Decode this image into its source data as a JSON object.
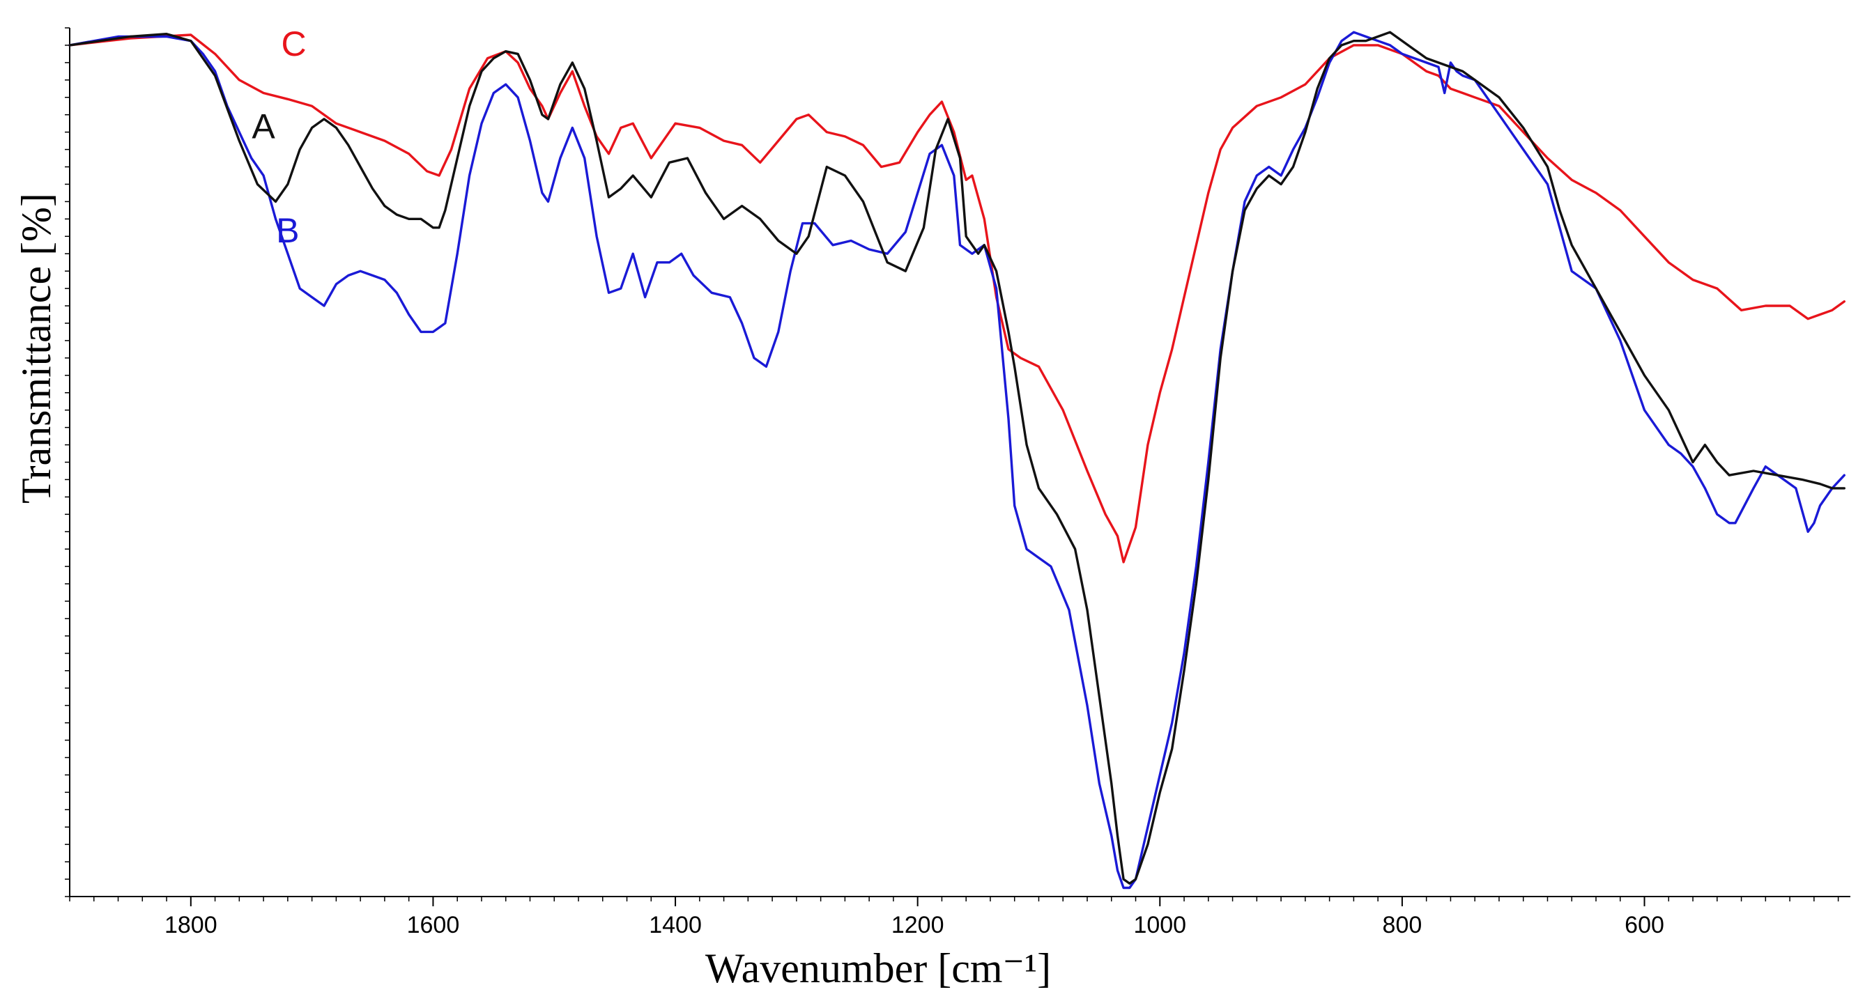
{
  "chart_data": {
    "type": "line",
    "title": "",
    "xlabel": "Wavenumber [cm⁻¹]",
    "ylabel": "Transmittance [%]",
    "x_reversed": true,
    "xlim": [
      1900,
      430
    ],
    "ylim": [
      0,
      100
    ],
    "x_ticks": [
      1800,
      1600,
      1400,
      1200,
      1000,
      800,
      600
    ],
    "x_tick_labels": [
      "1800",
      "1600",
      "1400",
      "1200",
      "1000",
      "800",
      "600"
    ],
    "y_tick_labels_shown": false,
    "grid": false,
    "legend": "inline labels near curves",
    "series": [
      {
        "name": "C",
        "color": "#e8141b",
        "x": [
          1900,
          1850,
          1800,
          1780,
          1760,
          1740,
          1720,
          1700,
          1680,
          1660,
          1640,
          1620,
          1605,
          1595,
          1585,
          1570,
          1555,
          1540,
          1530,
          1520,
          1510,
          1505,
          1495,
          1485,
          1475,
          1465,
          1455,
          1445,
          1435,
          1420,
          1400,
          1380,
          1360,
          1345,
          1330,
          1315,
          1300,
          1290,
          1275,
          1260,
          1245,
          1230,
          1215,
          1200,
          1190,
          1180,
          1170,
          1160,
          1155,
          1145,
          1135,
          1125,
          1115,
          1100,
          1080,
          1060,
          1045,
          1035,
          1030,
          1020,
          1010,
          1000,
          990,
          980,
          970,
          960,
          950,
          940,
          920,
          900,
          880,
          860,
          840,
          820,
          810,
          800,
          790,
          780,
          770,
          760,
          750,
          740,
          720,
          700,
          680,
          660,
          640,
          620,
          600,
          580,
          560,
          540,
          520,
          500,
          480,
          465,
          455,
          445,
          435
        ],
        "y": [
          98.0,
          98.8,
          99.2,
          97.0,
          94.0,
          92.5,
          91.8,
          91.0,
          89.0,
          88.0,
          87.0,
          85.5,
          83.5,
          83.0,
          86.0,
          93.0,
          96.5,
          97.3,
          96.0,
          93.0,
          91.0,
          89.5,
          92.5,
          95.0,
          91.0,
          87.5,
          85.5,
          88.5,
          89.0,
          85.0,
          89.0,
          88.5,
          87.0,
          86.5,
          84.5,
          87.0,
          89.5,
          90.0,
          88.0,
          87.5,
          86.5,
          84.0,
          84.5,
          88.0,
          90.0,
          91.5,
          88.0,
          82.5,
          83.0,
          78.0,
          69.0,
          63.0,
          62.0,
          61.0,
          56.0,
          49.0,
          44.0,
          41.5,
          38.5,
          42.5,
          52.0,
          58.0,
          63.0,
          69.0,
          75.0,
          81.0,
          86.0,
          88.5,
          91.0,
          92.0,
          93.5,
          96.5,
          98.0,
          98.0,
          97.5,
          97.0,
          96.0,
          95.0,
          94.5,
          93.0,
          92.5,
          92.0,
          91.0,
          88.0,
          85.0,
          82.5,
          81.0,
          79.0,
          76.0,
          73.0,
          71.0,
          70.0,
          67.5,
          68.0,
          68.0,
          66.5,
          67.0,
          67.5,
          68.5
        ]
      },
      {
        "name": "A",
        "color": "#111111",
        "x": [
          1900,
          1850,
          1820,
          1800,
          1780,
          1760,
          1745,
          1730,
          1720,
          1710,
          1700,
          1690,
          1680,
          1670,
          1660,
          1650,
          1640,
          1630,
          1620,
          1610,
          1600,
          1595,
          1590,
          1580,
          1570,
          1560,
          1550,
          1540,
          1530,
          1520,
          1510,
          1505,
          1495,
          1485,
          1475,
          1465,
          1455,
          1445,
          1435,
          1420,
          1405,
          1390,
          1375,
          1360,
          1345,
          1330,
          1315,
          1300,
          1290,
          1275,
          1260,
          1245,
          1235,
          1225,
          1210,
          1195,
          1185,
          1175,
          1165,
          1160,
          1150,
          1145,
          1135,
          1125,
          1120,
          1110,
          1100,
          1085,
          1070,
          1060,
          1050,
          1040,
          1035,
          1030,
          1025,
          1020,
          1010,
          1000,
          990,
          980,
          970,
          960,
          950,
          940,
          930,
          920,
          910,
          900,
          890,
          880,
          870,
          860,
          850,
          840,
          830,
          820,
          810,
          800,
          790,
          780,
          770,
          760,
          750,
          740,
          720,
          700,
          680,
          670,
          660,
          640,
          620,
          600,
          580,
          570,
          560,
          550,
          540,
          530,
          510,
          490,
          470,
          455,
          445,
          435
        ],
        "y": [
          98.0,
          99.0,
          99.3,
          98.5,
          94.5,
          87.0,
          82.0,
          80.0,
          82.0,
          86.0,
          88.5,
          89.5,
          88.5,
          86.5,
          84.0,
          81.5,
          79.5,
          78.5,
          78.0,
          78.0,
          77.0,
          77.0,
          79.0,
          85.0,
          91.0,
          95.0,
          96.5,
          97.3,
          97.0,
          94.0,
          90.0,
          89.5,
          93.5,
          96.0,
          93.0,
          87.0,
          80.5,
          81.5,
          83.0,
          80.5,
          84.5,
          85.0,
          81.0,
          78.0,
          79.5,
          78.0,
          75.5,
          74.0,
          76.0,
          84.0,
          83.0,
          80.0,
          76.5,
          73.0,
          72.0,
          77.0,
          86.0,
          89.5,
          85.0,
          76.0,
          74.0,
          75.0,
          72.0,
          65.0,
          61.0,
          52.0,
          47.0,
          44.0,
          40.0,
          33.0,
          23.0,
          13.0,
          7.0,
          2.0,
          1.5,
          2.0,
          6.0,
          12.0,
          17.0,
          26.0,
          36.0,
          48.0,
          62.0,
          72.0,
          79.0,
          81.5,
          83.0,
          82.0,
          84.0,
          88.0,
          93.0,
          96.5,
          98.0,
          98.5,
          98.5,
          99.0,
          99.5,
          98.5,
          97.5,
          96.5,
          96.0,
          95.5,
          95.0,
          94.0,
          92.0,
          88.5,
          84.0,
          79.0,
          75.0,
          70.0,
          65.0,
          60.0,
          56.0,
          53.0,
          50.0,
          52.0,
          50.0,
          48.5,
          49.0,
          48.5,
          48.0,
          47.5,
          47.0,
          47.0
        ]
      },
      {
        "name": "B",
        "color": "#1a1ad6",
        "x": [
          1900,
          1860,
          1820,
          1800,
          1790,
          1780,
          1770,
          1760,
          1750,
          1740,
          1730,
          1720,
          1710,
          1700,
          1690,
          1680,
          1670,
          1660,
          1650,
          1640,
          1630,
          1620,
          1610,
          1600,
          1595,
          1590,
          1580,
          1570,
          1560,
          1550,
          1540,
          1530,
          1520,
          1510,
          1505,
          1495,
          1485,
          1475,
          1465,
          1455,
          1445,
          1435,
          1425,
          1415,
          1405,
          1395,
          1385,
          1370,
          1355,
          1345,
          1335,
          1325,
          1315,
          1305,
          1295,
          1285,
          1270,
          1255,
          1240,
          1225,
          1210,
          1200,
          1190,
          1180,
          1170,
          1165,
          1155,
          1145,
          1135,
          1125,
          1120,
          1110,
          1100,
          1090,
          1075,
          1060,
          1050,
          1040,
          1035,
          1030,
          1025,
          1020,
          1010,
          1000,
          990,
          980,
          970,
          960,
          950,
          940,
          930,
          920,
          910,
          900,
          890,
          880,
          870,
          860,
          850,
          840,
          830,
          820,
          810,
          800,
          790,
          780,
          770,
          765,
          760,
          755,
          750,
          740,
          720,
          700,
          680,
          670,
          660,
          640,
          620,
          600,
          580,
          570,
          560,
          550,
          540,
          530,
          525,
          510,
          500,
          485,
          475,
          465,
          460,
          455,
          445,
          435
        ],
        "y": [
          98.0,
          99.0,
          99.0,
          98.5,
          97.0,
          95.0,
          91.0,
          88.0,
          85.0,
          83.0,
          78.0,
          74.0,
          70.0,
          69.0,
          68.0,
          70.5,
          71.5,
          72.0,
          71.5,
          71.0,
          69.5,
          67.0,
          65.0,
          65.0,
          65.5,
          66.0,
          74.0,
          83.0,
          89.0,
          92.5,
          93.5,
          92.0,
          87.0,
          81.0,
          80.0,
          85.0,
          88.5,
          85.0,
          76.0,
          69.5,
          70.0,
          74.0,
          69.0,
          73.0,
          73.0,
          74.0,
          71.5,
          69.5,
          69.0,
          66.0,
          62.0,
          61.0,
          65.0,
          72.0,
          77.5,
          77.5,
          75.0,
          75.5,
          74.5,
          74.0,
          76.5,
          81.0,
          85.5,
          86.5,
          83.0,
          75.0,
          74.0,
          75.0,
          70.0,
          55.0,
          45.0,
          40.0,
          39.0,
          38.0,
          33.0,
          22.0,
          13.0,
          7.0,
          3.0,
          1.0,
          1.0,
          2.0,
          8.0,
          14.0,
          20.0,
          28.0,
          38.0,
          50.0,
          63.0,
          72.0,
          80.0,
          83.0,
          84.0,
          83.0,
          86.0,
          88.5,
          92.0,
          96.0,
          98.5,
          99.5,
          99.0,
          98.5,
          98.0,
          97.0,
          96.5,
          96.0,
          95.5,
          92.5,
          96.0,
          95.0,
          94.5,
          94.0,
          90.0,
          86.0,
          82.0,
          77.0,
          72.0,
          70.0,
          64.0,
          56.0,
          52.0,
          51.0,
          49.5,
          47.0,
          44.0,
          43.0,
          43.0,
          47.0,
          49.5,
          48.0,
          47.0,
          42.0,
          43.0,
          45.0,
          47.0,
          48.5
        ]
      }
    ]
  }
}
